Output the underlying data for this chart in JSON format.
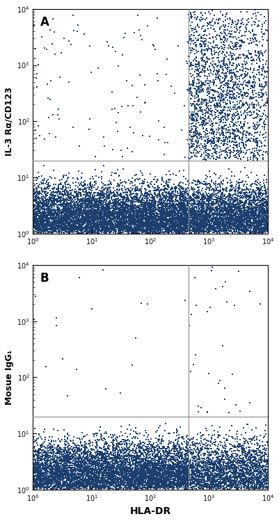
{
  "panel_A": {
    "label": "A",
    "ylabel": "IL-3 Rα/CD123",
    "hline": 20,
    "vline": 450,
    "xlim": [
      1,
      10000
    ],
    "ylim": [
      1,
      10000
    ],
    "dot_color": "#1c3f6e",
    "dot_size": 4.5,
    "regions": [
      {
        "xmin": 1,
        "xmax": 450,
        "ymin": 1,
        "ymax": 20,
        "n": 8000,
        "mode": "dense_low",
        "xbias": 1.2,
        "ybias": 0.85
      },
      {
        "xmin": 450,
        "xmax": 10000,
        "ymin": 1,
        "ymax": 20,
        "n": 3500,
        "mode": "dense_low",
        "xbias": 3.2,
        "ybias": 0.85
      },
      {
        "xmin": 1,
        "xmax": 450,
        "ymin": 20,
        "ymax": 10000,
        "n": 120,
        "mode": "sparse_high",
        "xbias": 0.8,
        "ybias": 2.3
      },
      {
        "xmin": 450,
        "xmax": 10000,
        "ymin": 20,
        "ymax": 10000,
        "n": 2200,
        "mode": "dense_high",
        "xbias": 3.2,
        "ybias": 2.0
      }
    ]
  },
  "panel_B": {
    "label": "B",
    "ylabel": "Mosue IgG₁",
    "hline": 20,
    "vline": 450,
    "xlim": [
      1,
      10000
    ],
    "ylim": [
      1,
      10000
    ],
    "dot_color": "#1c3f6e",
    "dot_size": 4.5,
    "regions": [
      {
        "xmin": 1,
        "xmax": 450,
        "ymin": 1,
        "ymax": 20,
        "n": 7000,
        "mode": "dense_low",
        "xbias": 1.5,
        "ybias": 0.85
      },
      {
        "xmin": 450,
        "xmax": 10000,
        "ymin": 1,
        "ymax": 20,
        "n": 2500,
        "mode": "dense_low",
        "xbias": 3.2,
        "ybias": 0.85
      },
      {
        "xmin": 1,
        "xmax": 450,
        "ymin": 20,
        "ymax": 10000,
        "n": 18,
        "mode": "sparse_high",
        "xbias": 1.2,
        "ybias": 1.8
      },
      {
        "xmin": 450,
        "xmax": 10000,
        "ymin": 20,
        "ymax": 10000,
        "n": 35,
        "mode": "sparse_high",
        "xbias": 3.2,
        "ybias": 1.5
      }
    ]
  },
  "xlabel": "HLA-DR",
  "background_color": "#ffffff",
  "line_color": "#888888",
  "line_width": 0.8
}
